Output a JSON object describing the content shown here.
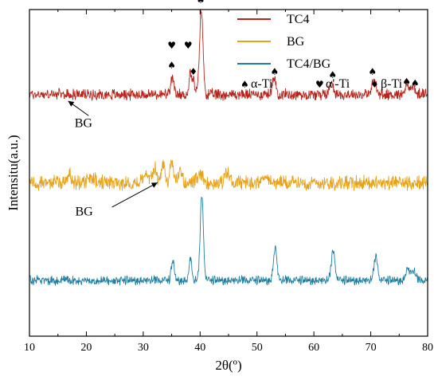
{
  "chart_data": {
    "type": "line",
    "xlabel": "2θ(º)",
    "ylabel": "Intensitu(a.u.)",
    "xlim": [
      10,
      80
    ],
    "x_ticks": [
      10,
      20,
      30,
      40,
      50,
      60,
      70,
      80
    ],
    "grid": false,
    "legend_position": "top-right",
    "series": [
      {
        "name": "TC4",
        "color": "#b8241c",
        "baseline": 0.74,
        "noise": 0.013,
        "peaks": [
          {
            "x": 35.1,
            "h": 0.05,
            "w": 0.25
          },
          {
            "x": 38.3,
            "h": 0.07,
            "w": 0.22
          },
          {
            "x": 38.9,
            "h": 0.04,
            "w": 0.2
          },
          {
            "x": 40.2,
            "h": 0.26,
            "w": 0.3
          },
          {
            "x": 53.0,
            "h": 0.045,
            "w": 0.35
          },
          {
            "x": 63.1,
            "h": 0.04,
            "w": 0.35
          },
          {
            "x": 70.6,
            "h": 0.045,
            "w": 0.35
          },
          {
            "x": 76.3,
            "h": 0.03,
            "w": 0.35
          },
          {
            "x": 77.4,
            "h": 0.025,
            "w": 0.35
          }
        ]
      },
      {
        "name": "BG",
        "color": "#e8a21a",
        "baseline": 0.47,
        "noise": 0.017,
        "peaks": [
          {
            "x": 17.0,
            "h": 0.03,
            "w": 0.3
          },
          {
            "x": 21.0,
            "h": 0.015,
            "w": 0.5
          },
          {
            "x": 30.5,
            "h": 0.03,
            "w": 0.5
          },
          {
            "x": 32.0,
            "h": 0.05,
            "w": 0.3
          },
          {
            "x": 33.5,
            "h": 0.06,
            "w": 0.3
          },
          {
            "x": 35.0,
            "h": 0.07,
            "w": 0.3
          },
          {
            "x": 36.5,
            "h": 0.04,
            "w": 0.3
          },
          {
            "x": 40.0,
            "h": 0.02,
            "w": 0.5
          },
          {
            "x": 44.8,
            "h": 0.03,
            "w": 0.4
          },
          {
            "x": 51.4,
            "h": 0.025,
            "w": 0.4
          }
        ]
      },
      {
        "name": "TC4/BG",
        "color": "#1f7fa0",
        "baseline": 0.17,
        "noise": 0.011,
        "peaks": [
          {
            "x": 35.2,
            "h": 0.06,
            "w": 0.25
          },
          {
            "x": 38.3,
            "h": 0.07,
            "w": 0.22
          },
          {
            "x": 40.3,
            "h": 0.26,
            "w": 0.28
          },
          {
            "x": 53.2,
            "h": 0.1,
            "w": 0.3
          },
          {
            "x": 63.4,
            "h": 0.09,
            "w": 0.32
          },
          {
            "x": 70.9,
            "h": 0.07,
            "w": 0.32
          },
          {
            "x": 76.5,
            "h": 0.035,
            "w": 0.35
          },
          {
            "x": 77.5,
            "h": 0.03,
            "w": 0.35
          }
        ]
      }
    ],
    "phase_legend": [
      {
        "symbol": "♠",
        "label": "α-Ti"
      },
      {
        "symbol": "♥",
        "label": "α'-Ti"
      },
      {
        "symbol": "♦",
        "label": "β-Ti"
      }
    ],
    "phase_markers": [
      {
        "x": 35.0,
        "y": 0.82,
        "symbol": "♠"
      },
      {
        "x": 35.0,
        "y": 0.88,
        "symbol": "♥"
      },
      {
        "x": 37.9,
        "y": 0.88,
        "symbol": "♥"
      },
      {
        "x": 38.8,
        "y": 0.8,
        "symbol": "♦"
      },
      {
        "x": 40.1,
        "y": 1.02,
        "symbol": "♠"
      },
      {
        "x": 53.1,
        "y": 0.8,
        "symbol": "♠"
      },
      {
        "x": 63.3,
        "y": 0.79,
        "symbol": "♠"
      },
      {
        "x": 70.3,
        "y": 0.8,
        "symbol": "♠"
      },
      {
        "x": 76.3,
        "y": 0.77,
        "symbol": "♠"
      },
      {
        "x": 77.8,
        "y": 0.765,
        "symbol": "♠"
      }
    ],
    "annotations": [
      {
        "text": "BG",
        "text_x": 19.5,
        "text_y": 0.64,
        "arrow_from_x": 20.4,
        "arrow_from_y": 0.675,
        "arrow_to_x": 16.8,
        "arrow_to_y": 0.72
      },
      {
        "text": "BG",
        "text_x": 19.6,
        "text_y": 0.37,
        "arrow_from_x": 24.5,
        "arrow_from_y": 0.395,
        "arrow_to_x": 32.5,
        "arrow_to_y": 0.47
      }
    ]
  }
}
